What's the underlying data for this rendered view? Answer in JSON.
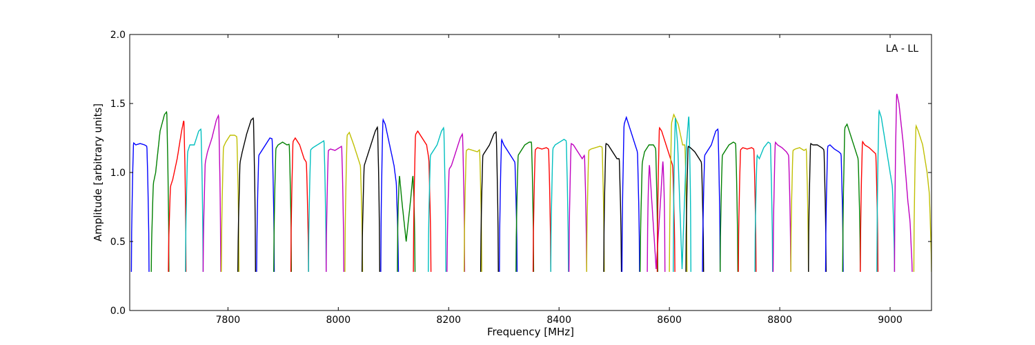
{
  "chart_data": {
    "type": "line",
    "title": "",
    "annotation": "LA - LL",
    "xlabel": "Frequency [MHz]",
    "ylabel": "Amplitude [arbitrary units]",
    "xlim": [
      7622,
      9075
    ],
    "ylim": [
      0.0,
      2.0
    ],
    "x_ticks": [
      7800,
      8000,
      8200,
      8400,
      8600,
      8800,
      9000
    ],
    "y_ticks": [
      "0.0",
      "0.5",
      "1.0",
      "1.5",
      "2.0"
    ],
    "grid": false,
    "channel_width_mhz": 32,
    "series": [
      {
        "color": "#0000ff",
        "start": 7625,
        "end": 7657,
        "peaks": [
          1.23,
          1.2,
          1.21,
          1.2,
          1.18
        ]
      },
      {
        "color": "#008000",
        "start": 7661,
        "end": 7693,
        "peaks": [
          0.85,
          1.0,
          1.3,
          1.42,
          1.46
        ]
      },
      {
        "color": "#ff0000",
        "start": 7692,
        "end": 7724,
        "peaks": [
          0.85,
          0.95,
          1.1,
          1.3,
          1.46
        ]
      },
      {
        "color": "#00bfbf",
        "start": 7723,
        "end": 7755,
        "peaks": [
          1.1,
          1.2,
          1.2,
          1.3,
          1.33
        ]
      },
      {
        "color": "#bf00bf",
        "start": 7755,
        "end": 7787,
        "peaks": [
          1.0,
          1.15,
          1.25,
          1.38,
          1.45
        ]
      },
      {
        "color": "#bfbf00",
        "start": 7788,
        "end": 7820,
        "peaks": [
          1.15,
          1.22,
          1.27,
          1.27,
          1.25
        ]
      },
      {
        "color": "#000000",
        "start": 7818,
        "end": 7850,
        "peaks": [
          1.0,
          1.15,
          1.28,
          1.38,
          1.41
        ]
      },
      {
        "color": "#0000ff",
        "start": 7852,
        "end": 7884,
        "peaks": [
          1.1,
          1.15,
          1.2,
          1.25,
          1.24
        ]
      },
      {
        "color": "#008000",
        "start": 7883,
        "end": 7915,
        "peaks": [
          1.15,
          1.2,
          1.22,
          1.2,
          1.21
        ]
      },
      {
        "color": "#ff0000",
        "start": 7914,
        "end": 7946,
        "peaks": [
          1.2,
          1.25,
          1.2,
          1.1,
          1.05
        ]
      },
      {
        "color": "#00bfbf",
        "start": 7946,
        "end": 7978,
        "peaks": [
          1.15,
          1.18,
          1.2,
          1.22,
          1.24
        ]
      },
      {
        "color": "#bf00bf",
        "start": 7978,
        "end": 8010,
        "peaks": [
          1.15,
          1.17,
          1.16,
          1.18,
          1.2
        ]
      },
      {
        "color": "#bfbf00",
        "start": 8012,
        "end": 8044,
        "peaks": [
          1.25,
          1.29,
          1.2,
          1.1,
          1.0
        ]
      },
      {
        "color": "#000000",
        "start": 8043,
        "end": 8075,
        "peaks": [
          1.0,
          1.1,
          1.2,
          1.3,
          1.36
        ]
      },
      {
        "color": "#0000ff",
        "start": 8077,
        "end": 8109,
        "peaks": [
          1.42,
          1.35,
          1.2,
          1.05,
          0.8
        ]
      },
      {
        "color": "#008000",
        "start": 8107,
        "end": 8139,
        "peaks": [
          1.15,
          0.8,
          0.5,
          0.8,
          1.15
        ]
      },
      {
        "color": "#ff0000",
        "start": 8136,
        "end": 8168,
        "peaks": [
          1.25,
          1.3,
          1.25,
          1.2,
          1.0
        ]
      },
      {
        "color": "#00bfbf",
        "start": 8163,
        "end": 8195,
        "peaks": [
          1.1,
          1.15,
          1.2,
          1.3,
          1.35
        ]
      },
      {
        "color": "#bf00bf",
        "start": 8197,
        "end": 8229,
        "peaks": [
          1.0,
          1.05,
          1.15,
          1.25,
          1.31
        ]
      },
      {
        "color": "#bfbf00",
        "start": 8228,
        "end": 8260,
        "peaks": [
          1.15,
          1.17,
          1.16,
          1.15,
          1.18
        ]
      },
      {
        "color": "#000000",
        "start": 8258,
        "end": 8290,
        "peaks": [
          1.1,
          1.15,
          1.2,
          1.28,
          1.31
        ]
      },
      {
        "color": "#0000ff",
        "start": 8292,
        "end": 8324,
        "peaks": [
          1.28,
          1.2,
          1.15,
          1.1,
          1.05
        ]
      },
      {
        "color": "#008000",
        "start": 8322,
        "end": 8354,
        "peaks": [
          1.1,
          1.15,
          1.2,
          1.22,
          1.22
        ]
      },
      {
        "color": "#ff0000",
        "start": 8353,
        "end": 8385,
        "peaks": [
          1.15,
          1.18,
          1.17,
          1.18,
          1.16
        ]
      },
      {
        "color": "#00bfbf",
        "start": 8385,
        "end": 8417,
        "peaks": [
          1.15,
          1.2,
          1.22,
          1.24,
          1.22
        ]
      },
      {
        "color": "#bf00bf",
        "start": 8418,
        "end": 8450,
        "peaks": [
          1.22,
          1.2,
          1.15,
          1.1,
          1.15
        ]
      },
      {
        "color": "#bfbf00",
        "start": 8450,
        "end": 8482,
        "peaks": [
          1.15,
          1.17,
          1.18,
          1.19,
          1.18
        ]
      },
      {
        "color": "#000000",
        "start": 8481,
        "end": 8513,
        "peaks": [
          1.22,
          1.2,
          1.15,
          1.1,
          1.1
        ]
      },
      {
        "color": "#0000ff",
        "start": 8514,
        "end": 8546,
        "peaks": [
          1.3,
          1.4,
          1.3,
          1.2,
          1.1
        ]
      },
      {
        "color": "#008000",
        "start": 8547,
        "end": 8579,
        "peaks": [
          1.0,
          1.15,
          1.2,
          1.2,
          1.15
        ]
      },
      {
        "color": "#bf00bf",
        "start": 8560,
        "end": 8592,
        "peaks": [
          1.3,
          0.8,
          0.3,
          0.8,
          1.35
        ]
      },
      {
        "color": "#ff0000",
        "start": 8578,
        "end": 8610,
        "peaks": [
          1.35,
          1.3,
          1.2,
          1.1,
          1.0
        ]
      },
      {
        "color": "#bfbf00",
        "start": 8600,
        "end": 8632,
        "peaks": [
          1.3,
          1.42,
          1.35,
          1.2,
          1.2
        ]
      },
      {
        "color": "#00bfbf",
        "start": 8607,
        "end": 8639,
        "peaks": [
          1.6,
          1.2,
          0.3,
          1.2,
          1.62
        ]
      },
      {
        "color": "#000000",
        "start": 8630,
        "end": 8662,
        "peaks": [
          1.2,
          1.18,
          1.15,
          1.1,
          1.05
        ]
      },
      {
        "color": "#0000ff",
        "start": 8660,
        "end": 8692,
        "peaks": [
          1.1,
          1.15,
          1.2,
          1.3,
          1.33
        ]
      },
      {
        "color": "#008000",
        "start": 8692,
        "end": 8724,
        "peaks": [
          1.1,
          1.15,
          1.2,
          1.22,
          1.2
        ]
      },
      {
        "color": "#ff0000",
        "start": 8725,
        "end": 8757,
        "peaks": [
          1.15,
          1.18,
          1.17,
          1.18,
          1.16
        ]
      },
      {
        "color": "#00bfbf",
        "start": 8755,
        "end": 8787,
        "peaks": [
          1.15,
          1.1,
          1.18,
          1.22,
          1.2
        ]
      },
      {
        "color": "#bf00bf",
        "start": 8788,
        "end": 8820,
        "peaks": [
          1.24,
          1.2,
          1.18,
          1.15,
          1.1
        ]
      },
      {
        "color": "#bfbf00",
        "start": 8820,
        "end": 8852,
        "peaks": [
          1.15,
          1.17,
          1.18,
          1.16,
          1.18
        ]
      },
      {
        "color": "#000000",
        "start": 8852,
        "end": 8884,
        "peaks": [
          1.22,
          1.2,
          1.2,
          1.18,
          1.15
        ]
      },
      {
        "color": "#0000ff",
        "start": 8883,
        "end": 8915,
        "peaks": [
          1.18,
          1.2,
          1.17,
          1.15,
          1.12
        ]
      },
      {
        "color": "#008000",
        "start": 8914,
        "end": 8946,
        "peaks": [
          1.3,
          1.35,
          1.25,
          1.15,
          1.05
        ]
      },
      {
        "color": "#ff0000",
        "start": 8946,
        "end": 8978,
        "peaks": [
          1.25,
          1.2,
          1.18,
          1.15,
          1.12
        ]
      },
      {
        "color": "#00bfbf",
        "start": 8976,
        "end": 9008,
        "peaks": [
          1.5,
          1.4,
          1.2,
          1.0,
          0.8
        ]
      },
      {
        "color": "#bf00bf",
        "start": 9008,
        "end": 9040,
        "peaks": [
          1.65,
          1.5,
          1.2,
          0.8,
          0.5
        ]
      },
      {
        "color": "#bfbf00",
        "start": 9043,
        "end": 9075,
        "peaks": [
          1.38,
          1.3,
          1.2,
          1.0,
          0.7
        ]
      }
    ]
  }
}
